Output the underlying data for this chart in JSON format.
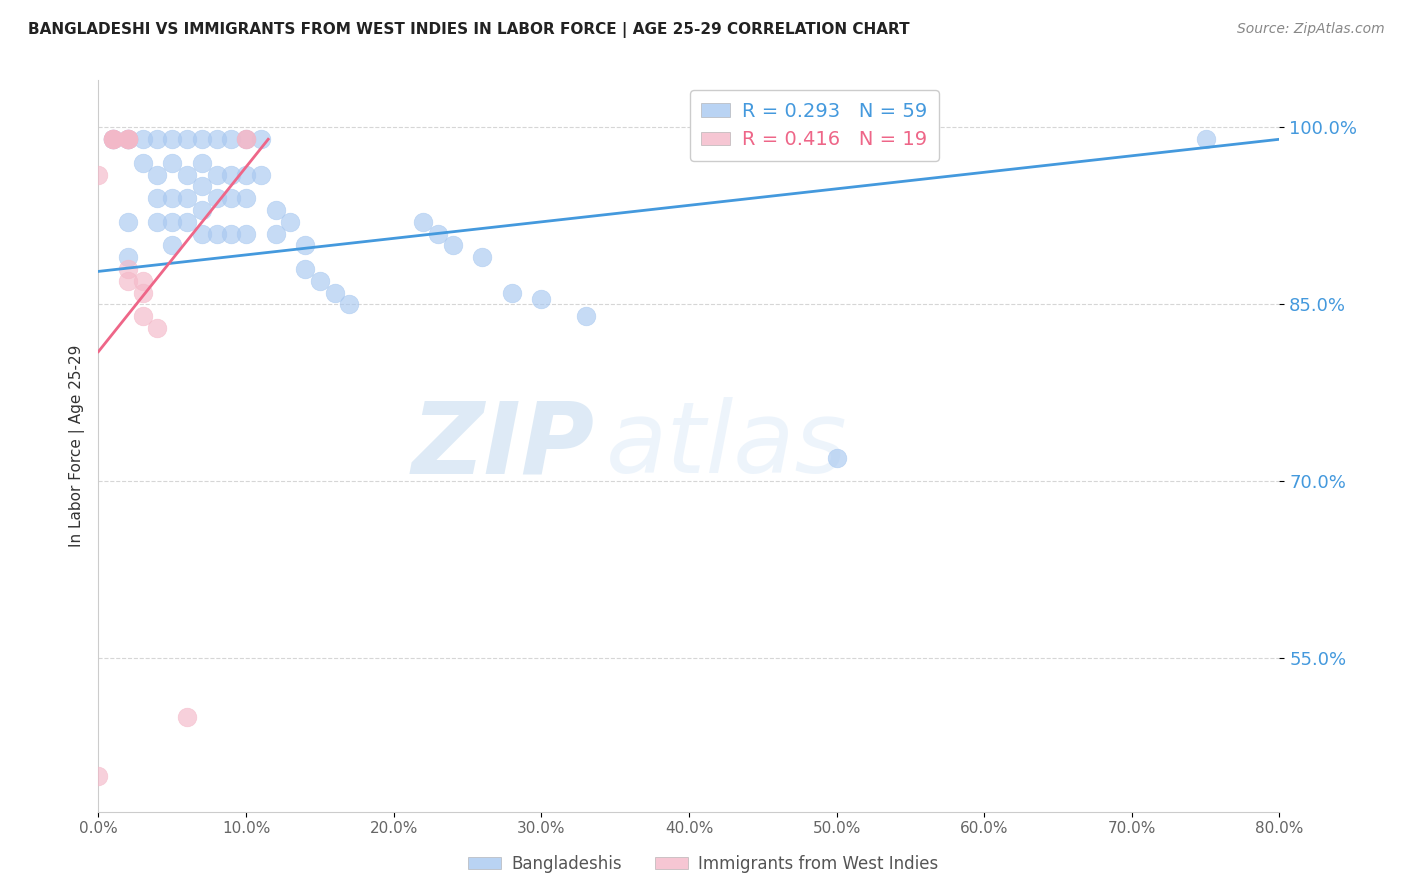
{
  "title": "BANGLADESHI VS IMMIGRANTS FROM WEST INDIES IN LABOR FORCE | AGE 25-29 CORRELATION CHART",
  "source": "Source: ZipAtlas.com",
  "ylabel": "In Labor Force | Age 25-29",
  "xlabel_ticks": [
    "0.0%",
    "10.0%",
    "20.0%",
    "30.0%",
    "40.0%",
    "50.0%",
    "60.0%",
    "70.0%",
    "80.0%"
  ],
  "ytick_labels": [
    "100.0%",
    "85.0%",
    "70.0%",
    "55.0%"
  ],
  "ytick_values": [
    1.0,
    0.85,
    0.7,
    0.55
  ],
  "xlim": [
    0.0,
    0.8
  ],
  "ylim": [
    0.42,
    1.04
  ],
  "blue_color": "#A8C8F0",
  "pink_color": "#F4B8C8",
  "blue_line_color": "#4499DD",
  "pink_line_color": "#EE6688",
  "r_blue": 0.293,
  "n_blue": 59,
  "r_pink": 0.416,
  "n_pink": 19,
  "legend_label_blue": "Bangladeshis",
  "legend_label_pink": "Immigrants from West Indies",
  "watermark_zip": "ZIP",
  "watermark_atlas": "atlas",
  "blue_scatter": [
    [
      0.01,
      0.99
    ],
    [
      0.01,
      0.99
    ],
    [
      0.01,
      0.99
    ],
    [
      0.02,
      0.99
    ],
    [
      0.02,
      0.99
    ],
    [
      0.02,
      0.99
    ],
    [
      0.02,
      0.92
    ],
    [
      0.02,
      0.89
    ],
    [
      0.03,
      0.99
    ],
    [
      0.03,
      0.97
    ],
    [
      0.04,
      0.99
    ],
    [
      0.04,
      0.96
    ],
    [
      0.04,
      0.94
    ],
    [
      0.04,
      0.92
    ],
    [
      0.05,
      0.99
    ],
    [
      0.05,
      0.97
    ],
    [
      0.05,
      0.94
    ],
    [
      0.05,
      0.92
    ],
    [
      0.05,
      0.9
    ],
    [
      0.06,
      0.99
    ],
    [
      0.06,
      0.96
    ],
    [
      0.06,
      0.94
    ],
    [
      0.06,
      0.92
    ],
    [
      0.07,
      0.99
    ],
    [
      0.07,
      0.97
    ],
    [
      0.07,
      0.95
    ],
    [
      0.07,
      0.93
    ],
    [
      0.07,
      0.91
    ],
    [
      0.08,
      0.99
    ],
    [
      0.08,
      0.96
    ],
    [
      0.08,
      0.94
    ],
    [
      0.08,
      0.91
    ],
    [
      0.09,
      0.99
    ],
    [
      0.09,
      0.96
    ],
    [
      0.09,
      0.94
    ],
    [
      0.09,
      0.91
    ],
    [
      0.1,
      0.99
    ],
    [
      0.1,
      0.96
    ],
    [
      0.1,
      0.94
    ],
    [
      0.1,
      0.91
    ],
    [
      0.11,
      0.99
    ],
    [
      0.11,
      0.96
    ],
    [
      0.12,
      0.93
    ],
    [
      0.12,
      0.91
    ],
    [
      0.13,
      0.92
    ],
    [
      0.14,
      0.9
    ],
    [
      0.14,
      0.88
    ],
    [
      0.15,
      0.87
    ],
    [
      0.16,
      0.86
    ],
    [
      0.17,
      0.85
    ],
    [
      0.22,
      0.92
    ],
    [
      0.23,
      0.91
    ],
    [
      0.24,
      0.9
    ],
    [
      0.26,
      0.89
    ],
    [
      0.28,
      0.86
    ],
    [
      0.3,
      0.855
    ],
    [
      0.33,
      0.84
    ],
    [
      0.5,
      0.72
    ],
    [
      0.75,
      0.99
    ]
  ],
  "pink_scatter": [
    [
      0.0,
      0.96
    ],
    [
      0.01,
      0.99
    ],
    [
      0.01,
      0.99
    ],
    [
      0.01,
      0.99
    ],
    [
      0.01,
      0.99
    ],
    [
      0.02,
      0.99
    ],
    [
      0.02,
      0.99
    ],
    [
      0.02,
      0.99
    ],
    [
      0.02,
      0.99
    ],
    [
      0.02,
      0.88
    ],
    [
      0.02,
      0.87
    ],
    [
      0.03,
      0.87
    ],
    [
      0.03,
      0.86
    ],
    [
      0.03,
      0.84
    ],
    [
      0.04,
      0.83
    ],
    [
      0.06,
      0.5
    ],
    [
      0.1,
      0.99
    ],
    [
      0.1,
      0.99
    ],
    [
      0.0,
      0.45
    ]
  ],
  "blue_trendline_x": [
    0.0,
    0.8
  ],
  "blue_trendline_y": [
    0.878,
    0.99
  ],
  "pink_trendline_x": [
    0.0,
    0.115
  ],
  "pink_trendline_y": [
    0.81,
    0.99
  ]
}
